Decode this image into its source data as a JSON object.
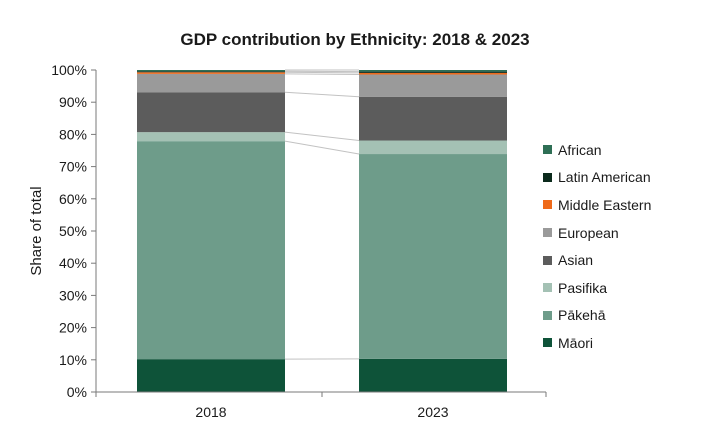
{
  "chart_data": {
    "type": "bar",
    "stacked": true,
    "title": "GDP contribution by Ethnicity: 2018 & 2023",
    "xlabel": "",
    "ylabel": "Share of total",
    "categories": [
      "2018",
      "2023"
    ],
    "ylim": [
      0,
      100
    ],
    "yticks": [
      "0%",
      "10%",
      "20%",
      "30%",
      "40%",
      "50%",
      "60%",
      "70%",
      "80%",
      "90%",
      "100%"
    ],
    "grid": false,
    "legend_position": "right",
    "series_lines": true,
    "series": [
      {
        "name": "Māori",
        "color": "#0e5339",
        "values": [
          10.2,
          10.3
        ]
      },
      {
        "name": "Pākehā",
        "color": "#6e9c8a",
        "values": [
          67.7,
          63.6
        ]
      },
      {
        "name": "Pasifika",
        "color": "#a4c1b4",
        "values": [
          2.8,
          4.2
        ]
      },
      {
        "name": "Asian",
        "color": "#5c5c5c",
        "values": [
          12.4,
          13.6
        ]
      },
      {
        "name": "European",
        "color": "#9a9a9a",
        "values": [
          5.7,
          6.9
        ]
      },
      {
        "name": "Middle Eastern",
        "color": "#ef6a1a",
        "values": [
          0.5,
          0.5
        ]
      },
      {
        "name": "Latin American",
        "color": "#0b2a1c",
        "values": [
          0.3,
          0.4
        ]
      },
      {
        "name": "African",
        "color": "#2e6f55",
        "values": [
          0.4,
          0.5
        ]
      }
    ]
  }
}
